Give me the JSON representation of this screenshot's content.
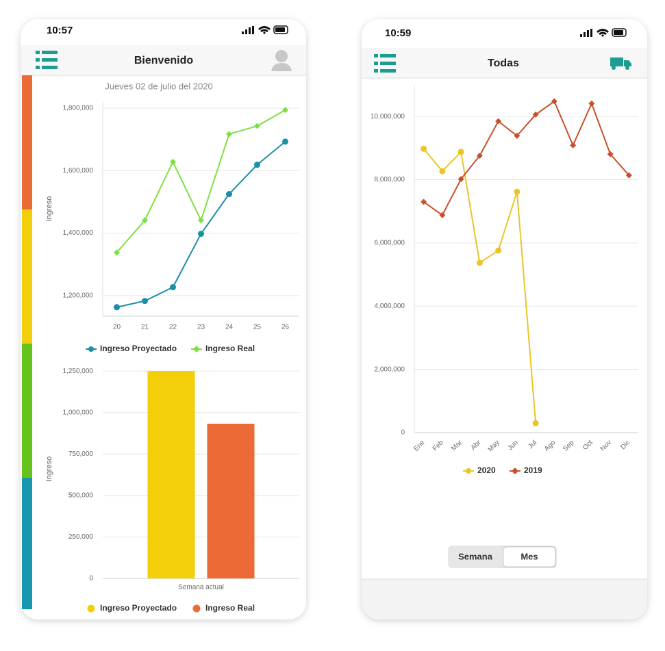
{
  "screens": [
    {
      "status_time": "10:57",
      "title": "Bienvenido",
      "date": "Jueves 02 de julio del 2020"
    },
    {
      "status_time": "10:59",
      "title": "Todas",
      "segments": [
        "Semana",
        "Mes"
      ]
    }
  ],
  "chart_data": [
    {
      "type": "line",
      "ylabel": "Ingreso",
      "categories": [
        "20",
        "21",
        "22",
        "23",
        "24",
        "25",
        "26"
      ],
      "series": [
        {
          "name": "Ingreso Proyectado",
          "color": "#1b8fa6",
          "marker": "circle",
          "values": [
            1163000,
            1183000,
            1227000,
            1398000,
            1525000,
            1619000,
            1693000
          ]
        },
        {
          "name": "Ingreso Real",
          "color": "#7ee03f",
          "marker": "diamond",
          "values": [
            1338000,
            1441000,
            1628000,
            1441000,
            1717000,
            1743000,
            1794000
          ]
        }
      ],
      "ylim": [
        1134000,
        1822000
      ],
      "yticks": [
        {
          "value": 1200000,
          "label": "1,200,000"
        },
        {
          "value": 1400000,
          "label": "1,400,000"
        },
        {
          "value": 1600000,
          "label": "1,600,000"
        },
        {
          "value": 1800000,
          "label": "1,800,000"
        }
      ],
      "grid": true
    },
    {
      "type": "bar",
      "ylabel": "Ingreso",
      "categories": [
        "Semana actual"
      ],
      "series": [
        {
          "name": "Ingreso Proyectado",
          "color": "#f2cf0a",
          "values": [
            1250000
          ]
        },
        {
          "name": "Ingreso Real",
          "color": "#ec6a35",
          "values": [
            933000
          ]
        }
      ],
      "ylim": [
        0,
        1300000
      ],
      "yticks": [
        0,
        {
          "value": 250000,
          "label": "250,000"
        },
        {
          "value": 500000,
          "label": "500,000"
        },
        {
          "value": 750000,
          "label": "750,000"
        },
        {
          "value": 1000000,
          "label": "1,000,000"
        },
        {
          "value": 1250000,
          "label": "1,250,000"
        }
      ],
      "grid": true
    },
    {
      "type": "line",
      "categories": [
        "Ene",
        "Feb",
        "Mar",
        "Abr",
        "May",
        "Jun",
        "Jul",
        "Ago",
        "Sep",
        "Oct",
        "Nov",
        "Dic"
      ],
      "series": [
        {
          "name": "2020",
          "color": "#e8c62a",
          "marker": "circle",
          "values": [
            8980000,
            8270000,
            8880000,
            5370000,
            5760000,
            7620000,
            300000,
            null,
            null,
            null,
            null,
            null
          ]
        },
        {
          "name": "2019",
          "color": "#c8502a",
          "marker": "diamond",
          "values": [
            7300000,
            6880000,
            8020000,
            8760000,
            9850000,
            9390000,
            10060000,
            10480000,
            9090000,
            10410000,
            8810000,
            8140000
          ]
        }
      ],
      "ylim": [
        0,
        11000000
      ],
      "yticks": [
        0,
        {
          "value": 2000000,
          "label": "2,000,000"
        },
        {
          "value": 4000000,
          "label": "4,000,000"
        },
        {
          "value": 6000000,
          "label": "6,000,000"
        },
        {
          "value": 8000000,
          "label": "8,000,000"
        },
        {
          "value": 10000000,
          "label": "10,000,000"
        }
      ],
      "grid": true
    }
  ]
}
